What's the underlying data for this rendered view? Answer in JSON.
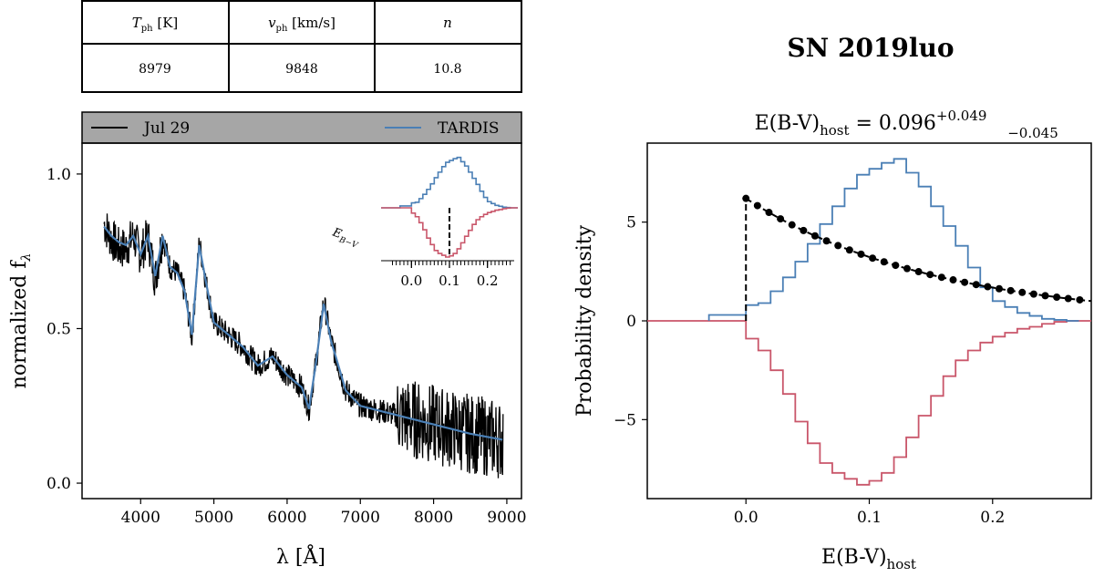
{
  "table": {
    "headers": [
      {
        "sym": "T",
        "sub": "ph",
        "unit": " [K]"
      },
      {
        "sym": "v",
        "sub": "ph",
        "unit": " [km/s]"
      },
      {
        "sym": "n",
        "sub": "",
        "unit": ""
      }
    ],
    "values": [
      "8979",
      "9848",
      "10.8"
    ]
  },
  "legend": {
    "observed": "Jul 29",
    "model": "TARDIS"
  },
  "colors": {
    "observed": "#000000",
    "model": "#4a7fb5",
    "prior": "#c9566a",
    "legend_bg": "#a6a6a6"
  },
  "chart_data": [
    {
      "type": "line",
      "title": "",
      "xlabel": "λ [Å]",
      "ylabel": "normalized f",
      "ylabel_sub": "λ",
      "xlim": [
        3200,
        9200
      ],
      "ylim": [
        -0.05,
        1.1
      ],
      "xticks": [
        4000,
        5000,
        6000,
        7000,
        8000,
        9000
      ],
      "xtick_labels": [
        "4000",
        "5000",
        "6000",
        "7000",
        "8000",
        "9000"
      ],
      "yticks": [
        0.0,
        0.5,
        1.0
      ],
      "ytick_labels": [
        "0.0",
        "0.5",
        "1.0"
      ],
      "series": [
        {
          "name": "Jul 29",
          "x": [
            3500,
            3600,
            3700,
            3800,
            3900,
            4000,
            4100,
            4200,
            4300,
            4400,
            4500,
            4600,
            4700,
            4800,
            4900,
            5000,
            5200,
            5400,
            5600,
            5800,
            6000,
            6200,
            6300,
            6400,
            6500,
            6600,
            6800,
            7000,
            7500,
            8000,
            8500,
            8950
          ],
          "y": [
            0.84,
            0.79,
            0.76,
            0.76,
            0.8,
            0.74,
            0.8,
            0.66,
            0.8,
            0.7,
            0.68,
            0.62,
            0.47,
            0.78,
            0.64,
            0.52,
            0.48,
            0.44,
            0.38,
            0.41,
            0.35,
            0.31,
            0.24,
            0.4,
            0.59,
            0.46,
            0.3,
            0.25,
            0.22,
            0.19,
            0.16,
            0.14
          ]
        },
        {
          "name": "TARDIS",
          "x": [
            3500,
            3600,
            3700,
            3800,
            3900,
            4000,
            4100,
            4200,
            4300,
            4400,
            4500,
            4600,
            4700,
            4800,
            4900,
            5000,
            5200,
            5400,
            5600,
            5800,
            6000,
            6200,
            6300,
            6400,
            6500,
            6600,
            6800,
            7000,
            7500,
            8000,
            8500,
            8950
          ],
          "y": [
            0.83,
            0.8,
            0.78,
            0.77,
            0.8,
            0.74,
            0.8,
            0.67,
            0.8,
            0.7,
            0.68,
            0.62,
            0.48,
            0.77,
            0.64,
            0.52,
            0.48,
            0.44,
            0.38,
            0.41,
            0.35,
            0.31,
            0.24,
            0.4,
            0.58,
            0.46,
            0.3,
            0.25,
            0.22,
            0.19,
            0.16,
            0.14
          ]
        }
      ],
      "inset": {
        "xlabel": "E_{B-V}",
        "xlabel_sym": "E",
        "xlabel_sub": "B−V",
        "xlim": [
          -0.08,
          0.28
        ],
        "xticks": [
          0.0,
          0.1,
          0.2
        ],
        "xtick_labels": [
          "0.0",
          "0.1",
          "0.2"
        ],
        "marker_x": 0.1
      }
    },
    {
      "type": "line",
      "title_main": "E(B-V)",
      "title_sub": "host",
      "title_value": " = 0.096",
      "title_upper": "+0.049",
      "title_lower": "−0.045",
      "xlabel_main": "E(B-V)",
      "xlabel_sub": "host",
      "ylabel": "Probability density",
      "xlim": [
        -0.08,
        0.28
      ],
      "ylim": [
        -9.0,
        9.0
      ],
      "xticks": [
        0.0,
        0.1,
        0.2
      ],
      "xtick_labels": [
        "0.0",
        "0.1",
        "0.2"
      ],
      "yticks": [
        -5,
        0,
        5
      ],
      "ytick_labels": [
        "−5",
        "0",
        "5"
      ],
      "bin_edges": [
        -0.03,
        -0.02,
        -0.01,
        0.0,
        0.01,
        0.02,
        0.03,
        0.04,
        0.05,
        0.06,
        0.07,
        0.08,
        0.09,
        0.1,
        0.11,
        0.12,
        0.13,
        0.14,
        0.15,
        0.16,
        0.17,
        0.18,
        0.19,
        0.2,
        0.21,
        0.22,
        0.23,
        0.24,
        0.25,
        0.26,
        0.27
      ],
      "posterior": [
        0.3,
        0.3,
        0.3,
        0.8,
        0.9,
        1.5,
        2.2,
        3.0,
        3.9,
        4.9,
        5.8,
        6.7,
        7.4,
        7.7,
        8.0,
        8.2,
        7.5,
        6.8,
        5.8,
        4.8,
        3.8,
        2.7,
        1.7,
        1.0,
        0.7,
        0.4,
        0.25,
        0.1,
        0.05,
        0.0
      ],
      "prior_hist": [
        0.0,
        0.0,
        0.0,
        -0.9,
        -1.5,
        -2.5,
        -3.7,
        -5.1,
        -6.2,
        -7.2,
        -7.7,
        -8.0,
        -8.3,
        -8.1,
        -7.7,
        -6.9,
        -5.9,
        -4.8,
        -3.8,
        -2.8,
        -2.0,
        -1.5,
        -1.1,
        -0.8,
        -0.6,
        -0.4,
        -0.3,
        -0.15,
        -0.05,
        0.0
      ],
      "prior_curve": {
        "x0": 0.0,
        "x1": 0.28,
        "y0": 6.2,
        "y1": 1.0,
        "points": 30
      }
    }
  ],
  "right_title": "SN 2019luo"
}
